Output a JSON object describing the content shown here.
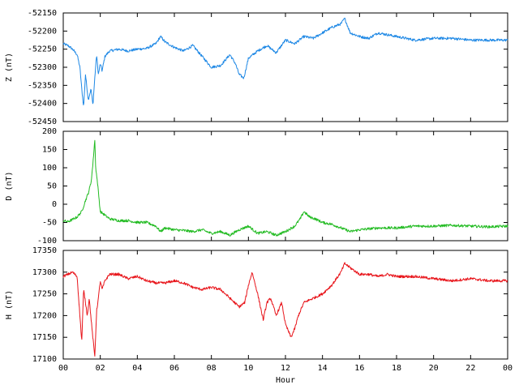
{
  "chart_data": [
    {
      "type": "line",
      "ylabel": "Z (nT)",
      "ylim": [
        -52450,
        -52150
      ],
      "yticks": [
        "-52150",
        "-52200",
        "-52250",
        "-52300",
        "-52350",
        "-52400",
        "-52450"
      ],
      "series": [
        {
          "color": "#1e88e5",
          "x": [
            0,
            0.25,
            0.5,
            0.75,
            0.9,
            1.0,
            1.1,
            1.2,
            1.35,
            1.5,
            1.6,
            1.7,
            1.8,
            1.9,
            2.0,
            2.1,
            2.25,
            2.5,
            3.0,
            3.5,
            4.0,
            4.5,
            5.0,
            5.25,
            5.5,
            6.0,
            6.5,
            7.0,
            7.5,
            8.0,
            8.5,
            9.0,
            9.3,
            9.5,
            9.75,
            10.0,
            10.5,
            11.0,
            11.5,
            12.0,
            12.5,
            13.0,
            13.5,
            14.0,
            14.5,
            15.0,
            15.2,
            15.5,
            16.0,
            16.5,
            17.0,
            17.5,
            18.0,
            19.0,
            20.0,
            21.0,
            22.0,
            23.0,
            24.0
          ],
          "y": [
            -52235,
            -52240,
            -52250,
            -52265,
            -52300,
            -52360,
            -52410,
            -52320,
            -52390,
            -52360,
            -52405,
            -52330,
            -52265,
            -52320,
            -52290,
            -52310,
            -52270,
            -52255,
            -52250,
            -52255,
            -52250,
            -52248,
            -52235,
            -52215,
            -52230,
            -52245,
            -52255,
            -52240,
            -52270,
            -52300,
            -52295,
            -52265,
            -52290,
            -52320,
            -52330,
            -52275,
            -52255,
            -52240,
            -52260,
            -52225,
            -52235,
            -52215,
            -52220,
            -52205,
            -52190,
            -52180,
            -52165,
            -52205,
            -52215,
            -52220,
            -52205,
            -52210,
            -52215,
            -52225,
            -52220,
            -52220,
            -52225,
            -52225,
            -52225
          ]
        }
      ]
    },
    {
      "type": "line",
      "ylabel": "D (nT)",
      "ylim": [
        -100,
        200
      ],
      "yticks": [
        "200",
        "150",
        "100",
        "50",
        "0",
        "-50",
        "-100"
      ],
      "series": [
        {
          "color": "#22bb22",
          "x": [
            0,
            0.25,
            0.5,
            0.75,
            1.0,
            1.2,
            1.35,
            1.5,
            1.6,
            1.7,
            1.75,
            1.85,
            2.0,
            2.25,
            2.5,
            3.0,
            3.5,
            4.0,
            4.5,
            5.0,
            5.25,
            5.5,
            6.0,
            6.5,
            7.0,
            7.5,
            8.0,
            8.5,
            9.0,
            9.5,
            10.0,
            10.5,
            11.0,
            11.5,
            12.0,
            12.5,
            12.8,
            13.0,
            13.3,
            13.6,
            14.0,
            14.5,
            15.0,
            15.5,
            16.0,
            17.0,
            18.0,
            19.0,
            20.0,
            21.0,
            22.0,
            23.0,
            24.0
          ],
          "y": [
            -45,
            -48,
            -42,
            -35,
            -20,
            10,
            30,
            60,
            110,
            178,
            100,
            60,
            -20,
            -30,
            -40,
            -45,
            -45,
            -50,
            -50,
            -60,
            -75,
            -65,
            -70,
            -72,
            -75,
            -70,
            -80,
            -75,
            -85,
            -70,
            -60,
            -80,
            -75,
            -85,
            -75,
            -60,
            -40,
            -20,
            -35,
            -40,
            -50,
            -55,
            -65,
            -75,
            -70,
            -65,
            -65,
            -60,
            -60,
            -58,
            -60,
            -62,
            -60
          ]
        }
      ]
    },
    {
      "type": "line",
      "ylabel": "H (nT)",
      "xlabel": "Hour",
      "ylim": [
        17100,
        17350
      ],
      "xlim": [
        0,
        24
      ],
      "yticks": [
        "17350",
        "17300",
        "17250",
        "17200",
        "17150",
        "17100"
      ],
      "xticks": [
        "00",
        "02",
        "04",
        "06",
        "08",
        "10",
        "12",
        "14",
        "16",
        "18",
        "20",
        "22",
        "00"
      ],
      "series": [
        {
          "color": "#e8151b",
          "x": [
            0,
            0.25,
            0.5,
            0.75,
            0.9,
            1.0,
            1.1,
            1.2,
            1.3,
            1.4,
            1.55,
            1.7,
            1.8,
            1.9,
            2.0,
            2.1,
            2.25,
            2.5,
            3.0,
            3.5,
            4.0,
            4.5,
            5.0,
            5.5,
            6.0,
            6.5,
            7.0,
            7.5,
            8.0,
            8.5,
            9.0,
            9.5,
            9.8,
            10.0,
            10.2,
            10.5,
            10.8,
            11.0,
            11.2,
            11.5,
            11.8,
            12.0,
            12.3,
            12.5,
            12.7,
            13.0,
            13.5,
            14.0,
            14.5,
            15.0,
            15.2,
            15.5,
            16.0,
            16.5,
            17.0,
            17.5,
            18.0,
            19.0,
            20.0,
            21.0,
            22.0,
            23.0,
            24.0
          ],
          "y": [
            17290,
            17295,
            17300,
            17290,
            17200,
            17140,
            17260,
            17230,
            17200,
            17240,
            17170,
            17105,
            17210,
            17240,
            17280,
            17260,
            17280,
            17295,
            17295,
            17285,
            17290,
            17280,
            17275,
            17275,
            17280,
            17275,
            17265,
            17260,
            17265,
            17260,
            17240,
            17220,
            17230,
            17270,
            17300,
            17250,
            17190,
            17230,
            17240,
            17200,
            17230,
            17180,
            17150,
            17170,
            17200,
            17230,
            17240,
            17250,
            17270,
            17300,
            17320,
            17310,
            17295,
            17295,
            17290,
            17295,
            17290,
            17290,
            17285,
            17280,
            17285,
            17280,
            17280
          ]
        }
      ]
    }
  ]
}
